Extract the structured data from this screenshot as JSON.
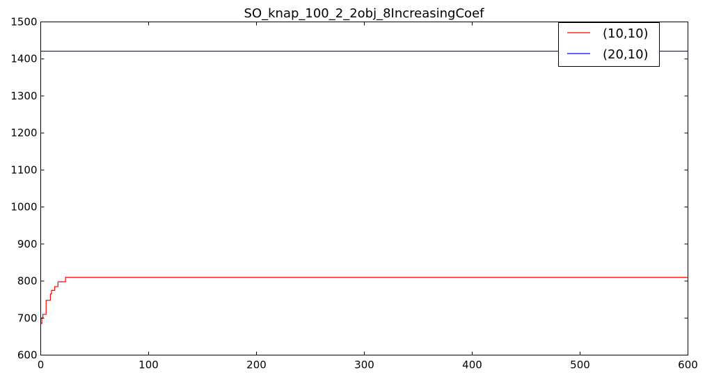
{
  "chart_data": {
    "type": "line",
    "title": "SO_knap_100_2_2obj_8IncreasingCoef",
    "xlabel": "",
    "ylabel": "",
    "xlim": [
      0,
      600
    ],
    "ylim": [
      600,
      1500
    ],
    "xticks": [
      0,
      100,
      200,
      300,
      400,
      500,
      600
    ],
    "yticks": [
      600,
      700,
      800,
      900,
      1000,
      1100,
      1200,
      1300,
      1400,
      1500
    ],
    "grid": false,
    "legend_position": "top-right",
    "series": [
      {
        "name": "(10,10)",
        "color": "#ff0000",
        "step": true,
        "points": [
          [
            0,
            685
          ],
          [
            1,
            700
          ],
          [
            2,
            710
          ],
          [
            4,
            710
          ],
          [
            5,
            748
          ],
          [
            8,
            748
          ],
          [
            9,
            765
          ],
          [
            10,
            775
          ],
          [
            12,
            775
          ],
          [
            13,
            785
          ],
          [
            15,
            785
          ],
          [
            16,
            798
          ],
          [
            22,
            798
          ],
          [
            23,
            810
          ],
          [
            600,
            810
          ]
        ]
      },
      {
        "name": "(20,10)",
        "color": "#0000ff",
        "step": false,
        "points": [
          [
            0,
            1421
          ],
          [
            600,
            1421
          ]
        ]
      }
    ]
  }
}
